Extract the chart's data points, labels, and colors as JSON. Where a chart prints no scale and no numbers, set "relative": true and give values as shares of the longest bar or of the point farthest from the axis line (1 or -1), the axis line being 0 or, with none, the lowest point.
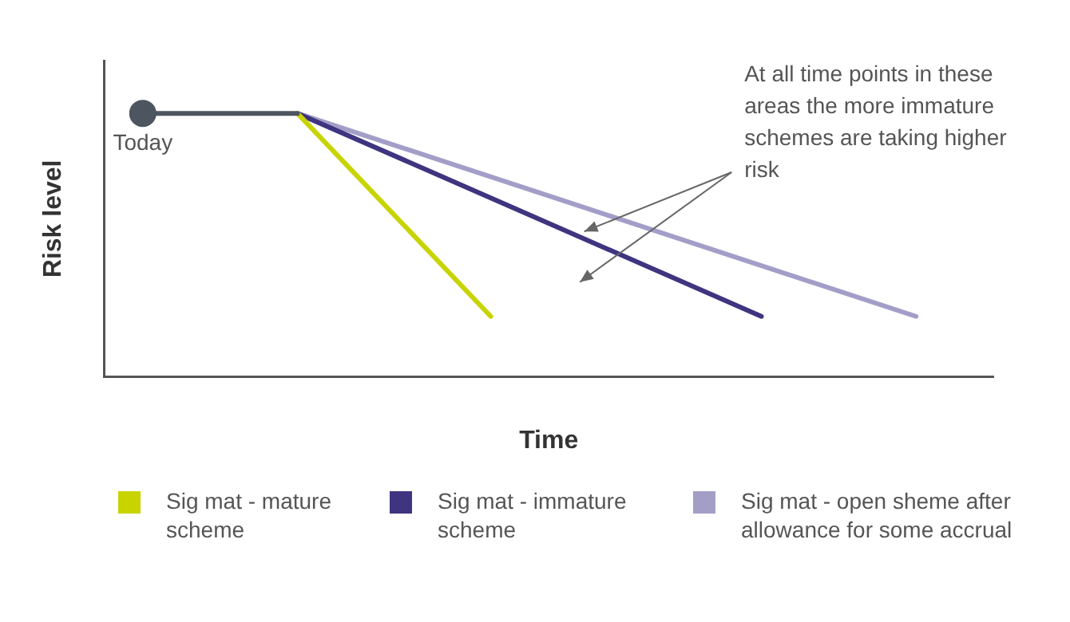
{
  "chart_data": {
    "type": "line",
    "relative": true,
    "xlabel": "Time",
    "ylabel": "Risk level",
    "grid": false,
    "legend": "bottom",
    "marker": "none",
    "line_style": "solid",
    "categories": [
      null,
      null,
      null,
      null,
      null,
      null,
      null,
      null,
      null,
      null,
      null,
      null,
      null,
      null,
      null,
      null,
      null,
      null,
      null,
      null,
      null,
      null,
      null,
      null
    ],
    "series": [
      {
        "type": "line",
        "color": "#4d5560",
        "marker": "circle",
        "values": [
          null,
          1,
          null,
          null,
          null,
          1,
          null,
          null,
          null,
          null,
          null,
          null,
          null,
          null,
          null,
          null,
          null,
          null,
          null,
          null,
          null,
          null,
          null,
          null
        ]
      },
      {
        "name": "Sig mat - mature scheme",
        "color": "#c8d400",
        "values": [
          null,
          null,
          null,
          null,
          null,
          1,
          null,
          null,
          null,
          null,
          0.23,
          null,
          null,
          null,
          null,
          null,
          null,
          null,
          null,
          null,
          null,
          null,
          null,
          null
        ]
      },
      {
        "name": "Sig mat - immature scheme",
        "color": "#3f3480",
        "values": [
          null,
          null,
          null,
          null,
          null,
          1,
          null,
          null,
          null,
          null,
          null,
          null,
          null,
          null,
          null,
          null,
          null,
          0.23,
          null,
          null,
          null,
          null,
          null,
          null
        ]
      },
      {
        "name": "Sig mat - open sheme after allowance for some accrual",
        "color": "#a39ec8",
        "values": [
          null,
          null,
          null,
          null,
          null,
          1,
          null,
          null,
          null,
          null,
          null,
          null,
          null,
          null,
          null,
          null,
          null,
          null,
          null,
          null,
          null,
          0.23,
          null,
          null
        ]
      }
    ],
    "annotations": [
      "Today",
      "At all time points in these areas the more immature schemes are taking higher risk"
    ]
  }
}
